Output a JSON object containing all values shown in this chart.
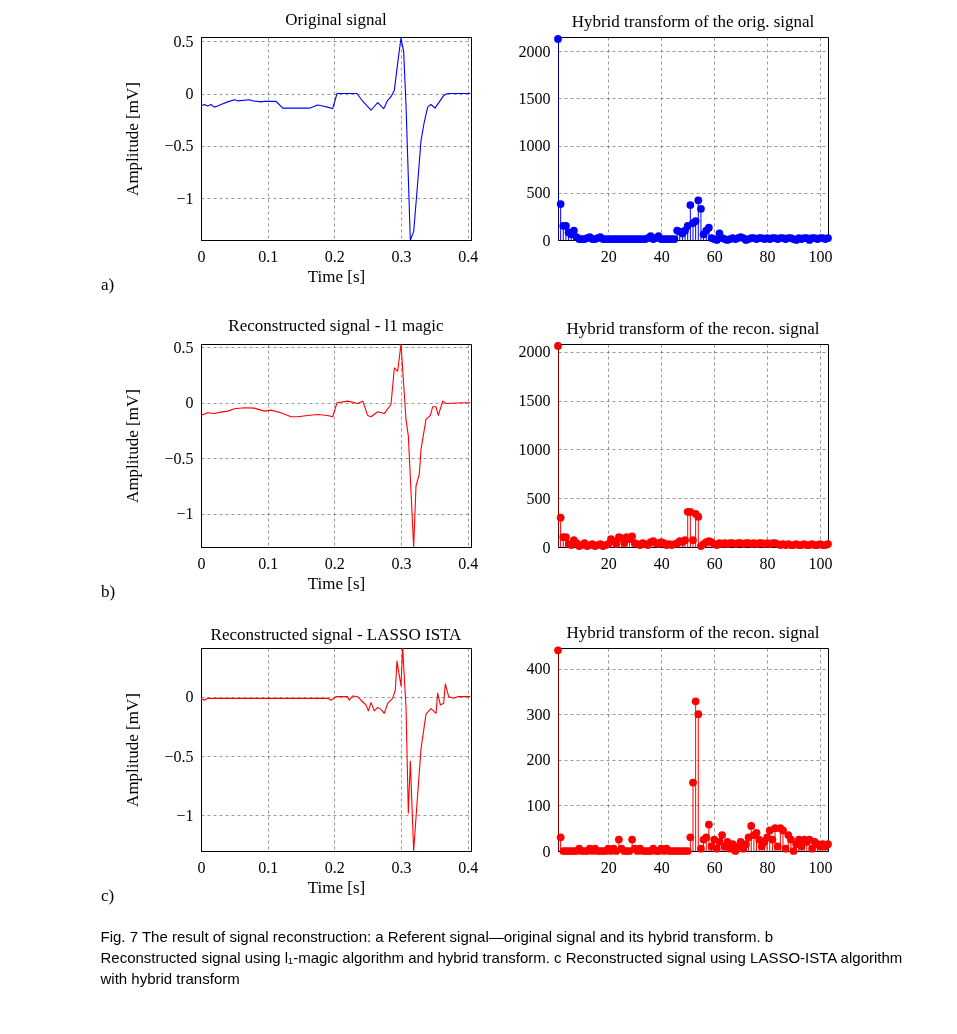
{
  "chart_data": [
    {
      "type": "line",
      "title": "Original signal",
      "xlabel": "Time [s]",
      "ylabel": "Amplitude [mV]",
      "xlim": [
        0,
        0.405
      ],
      "ylim": [
        -1.4,
        0.54
      ],
      "xticks": [
        0,
        0.1,
        0.2,
        0.3,
        0.4
      ],
      "yticks": [
        -1,
        -0.5,
        0,
        0.5
      ],
      "grid": true,
      "annotations": [
        "a)"
      ],
      "series": [
        {
          "color": "#0000ff",
          "x": [
            0,
            0.005,
            0.01,
            0.015,
            0.02,
            0.025,
            0.03,
            0.04,
            0.05,
            0.055,
            0.0725,
            0.0775,
            0.09,
            0.095,
            0.1125,
            0.1225,
            0.1625,
            0.175,
            0.1825,
            0.19,
            0.1975,
            0.204,
            0.234,
            0.2425,
            0.255,
            0.265,
            0.274,
            0.28,
            0.285,
            0.29,
            0.296,
            0.3,
            0.304,
            0.3075,
            0.314,
            0.319,
            0.325,
            0.33,
            0.335,
            0.34,
            0.345,
            0.351,
            0.3575,
            0.364,
            0.37,
            0.404
          ],
          "values": [
            -0.12,
            -0.105,
            -0.12,
            -0.105,
            -0.13,
            -0.12,
            -0.105,
            -0.08,
            -0.06,
            -0.07,
            -0.06,
            -0.07,
            -0.08,
            -0.075,
            -0.074,
            -0.14,
            -0.14,
            -0.11,
            -0.12,
            -0.13,
            -0.145,
            0,
            0,
            -0.074,
            -0.16,
            -0.087,
            -0.145,
            -0.065,
            -0.03,
            0.03,
            0.34,
            0.53,
            0.4,
            -0.11,
            -1.4,
            -1.32,
            -0.855,
            -0.45,
            -0.27,
            -0.13,
            -0.105,
            -0.14,
            -0.08,
            -0.02,
            0,
            0
          ]
        }
      ]
    },
    {
      "type": "lollipop",
      "title": "Hybrid transform of the orig. signal",
      "xlim": [
        1,
        103
      ],
      "ylim": [
        0,
        2150
      ],
      "xticks": [
        20,
        40,
        60,
        80,
        100
      ],
      "yticks": [
        0,
        500,
        1000,
        1500,
        2000
      ],
      "grid": true,
      "marker": "circle",
      "x": [
        1,
        2,
        3,
        4,
        5,
        6,
        7,
        8,
        9,
        10,
        11,
        12,
        13,
        14,
        15,
        16,
        17,
        18,
        19,
        20,
        21,
        22,
        23,
        24,
        25,
        26,
        27,
        28,
        29,
        30,
        31,
        32,
        33,
        34,
        35,
        36,
        37,
        38,
        39,
        40,
        41,
        42,
        43,
        44,
        45,
        46,
        47,
        48,
        49,
        50,
        51,
        52,
        53,
        54,
        55,
        56,
        57,
        58,
        59,
        60,
        61,
        62,
        63,
        64,
        65,
        66,
        67,
        68,
        69,
        70,
        71,
        72,
        73,
        74,
        75,
        76,
        77,
        78,
        79,
        80,
        81,
        82,
        83,
        84,
        85,
        86,
        87,
        88,
        89,
        90,
        91,
        92,
        93,
        94,
        95,
        96,
        97,
        98,
        99,
        100,
        101,
        102,
        103
      ],
      "series": [
        {
          "color": "#0000ff",
          "values": [
            2130,
            380,
            150,
            150,
            80,
            60,
            100,
            30,
            10,
            10,
            10,
            20,
            30,
            10,
            10,
            20,
            30,
            10,
            10,
            10,
            10,
            10,
            10,
            10,
            10,
            10,
            10,
            10,
            10,
            10,
            10,
            10,
            10,
            10,
            20,
            40,
            10,
            20,
            40,
            10,
            10,
            10,
            10,
            10,
            10,
            100,
            90,
            70,
            100,
            150,
            370,
            180,
            200,
            420,
            330,
            60,
            100,
            130,
            20,
            10,
            0,
            70,
            20,
            10,
            0,
            10,
            20,
            10,
            20,
            30,
            20,
            0,
            10,
            20,
            20,
            10,
            20,
            20,
            10,
            20,
            10,
            20,
            20,
            10,
            20,
            20,
            10,
            20,
            20,
            10,
            0,
            20,
            10,
            20,
            20,
            0,
            20,
            20,
            10,
            20,
            20,
            10,
            20
          ]
        }
      ]
    },
    {
      "type": "line",
      "title": "Reconstructed signal - l1 magic",
      "xlabel": "Time [s]",
      "ylabel": "Amplitude [mV]",
      "xlim": [
        0,
        0.405
      ],
      "ylim": [
        -1.3,
        0.53
      ],
      "xticks": [
        0,
        0.1,
        0.2,
        0.3,
        0.4
      ],
      "yticks": [
        -1,
        -0.5,
        0,
        0.5
      ],
      "grid": true,
      "annotations": [
        "b)"
      ],
      "series": [
        {
          "color": "#ff0000",
          "x": [
            0,
            0.01,
            0.02,
            0.03,
            0.04,
            0.05,
            0.065,
            0.08,
            0.095,
            0.105,
            0.12,
            0.135,
            0.145,
            0.16,
            0.175,
            0.19,
            0.1975,
            0.204,
            0.22,
            0.235,
            0.2425,
            0.25,
            0.255,
            0.265,
            0.275,
            0.285,
            0.29,
            0.295,
            0.3,
            0.3075,
            0.311,
            0.319,
            0.3225,
            0.3275,
            0.33,
            0.3375,
            0.344,
            0.3475,
            0.3525,
            0.356,
            0.3625,
            0.3675,
            0.395,
            0.404
          ],
          "values": [
            -0.114,
            -0.09,
            -0.096,
            -0.084,
            -0.075,
            -0.054,
            -0.045,
            -0.048,
            -0.075,
            -0.066,
            -0.09,
            -0.126,
            -0.126,
            -0.114,
            -0.105,
            -0.114,
            -0.126,
            0,
            0.015,
            -0.006,
            0.015,
            -0.114,
            -0.126,
            -0.081,
            -0.096,
            -0.015,
            0.314,
            0.284,
            0.53,
            -0.15,
            -0.3,
            -1.3,
            -0.75,
            -0.64,
            -0.42,
            -0.15,
            -0.114,
            -0.036,
            -0.036,
            -0.114,
            0.015,
            -0.006,
            0,
            0
          ]
        }
      ]
    },
    {
      "type": "lollipop",
      "title": "Hybrid transform of the recon. signal",
      "xlim": [
        1,
        103
      ],
      "ylim": [
        0,
        2080
      ],
      "xticks": [
        20,
        40,
        60,
        80,
        100
      ],
      "yticks": [
        0,
        500,
        1000,
        1500,
        2000
      ],
      "grid": true,
      "marker": "circle",
      "x": [
        1,
        2,
        3,
        4,
        5,
        6,
        7,
        8,
        9,
        10,
        11,
        12,
        13,
        14,
        15,
        16,
        17,
        18,
        19,
        20,
        21,
        22,
        23,
        24,
        25,
        26,
        27,
        28,
        29,
        30,
        31,
        32,
        33,
        34,
        35,
        36,
        37,
        38,
        39,
        40,
        41,
        42,
        43,
        44,
        45,
        46,
        47,
        48,
        49,
        50,
        51,
        52,
        53,
        54,
        55,
        56,
        57,
        58,
        59,
        60,
        61,
        62,
        63,
        64,
        65,
        66,
        67,
        68,
        69,
        70,
        71,
        72,
        73,
        74,
        75,
        76,
        77,
        78,
        79,
        80,
        81,
        82,
        83,
        84,
        85,
        86,
        87,
        88,
        89,
        90,
        91,
        92,
        93,
        94,
        95,
        96,
        97,
        98,
        99,
        100,
        101,
        102,
        103
      ],
      "series": [
        {
          "color": "#ff0000",
          "values": [
            2060,
            300,
            100,
            100,
            30,
            20,
            70,
            40,
            10,
            20,
            40,
            10,
            20,
            30,
            10,
            20,
            30,
            10,
            20,
            30,
            80,
            60,
            30,
            100,
            90,
            40,
            100,
            80,
            110,
            40,
            30,
            20,
            40,
            30,
            20,
            50,
            60,
            40,
            30,
            50,
            40,
            20,
            30,
            20,
            30,
            40,
            60,
            50,
            70,
            360,
            360,
            70,
            340,
            310,
            10,
            30,
            50,
            60,
            50,
            30,
            20,
            40,
            30,
            40,
            30,
            40,
            40,
            30,
            40,
            40,
            30,
            40,
            40,
            30,
            40,
            30,
            40,
            40,
            30,
            40,
            30,
            40,
            40,
            30,
            20,
            30,
            20,
            30,
            20,
            20,
            30,
            20,
            20,
            30,
            20,
            20,
            30,
            20,
            20,
            30,
            20,
            20,
            30
          ]
        }
      ]
    },
    {
      "type": "line",
      "title": "Reconstructed signal - LASSO ISTA",
      "xlabel": "Time [s]",
      "ylabel": "Amplitude [mV]",
      "xlim": [
        0,
        0.405
      ],
      "ylim": [
        -1.3,
        0.41
      ],
      "xticks": [
        0,
        0.1,
        0.2,
        0.3,
        0.4
      ],
      "yticks": [
        -1,
        -0.5,
        0
      ],
      "grid": true,
      "annotations": [
        "c)",
        "Fig. 7 The result of signal reconstruction: a Referent signal—original signal and its hybrid transform. b Reconstructed signal using l₁-magic algorithm and hybrid transform. c Reconstructed signal using LASSO-ISTA algorithm with hybrid transform"
      ],
      "series": [
        {
          "color": "#ff0000",
          "x": [
            0,
            0.005,
            0.01,
            0.19,
            0.195,
            0.2025,
            0.22,
            0.2225,
            0.2275,
            0.235,
            0.24,
            0.2475,
            0.251,
            0.255,
            0.26,
            0.265,
            0.27,
            0.275,
            0.28,
            0.2875,
            0.2915,
            0.294,
            0.3,
            0.3025,
            0.3075,
            0.311,
            0.314,
            0.319,
            0.324,
            0.33,
            0.3375,
            0.345,
            0.3525,
            0.355,
            0.359,
            0.364,
            0.3665,
            0.3715,
            0.379,
            0.385,
            0.404
          ],
          "values": [
            -0.014,
            -0.03,
            -0.014,
            -0.014,
            -0.03,
            0,
            0,
            -0.03,
            0.006,
            0,
            -0.03,
            -0.07,
            -0.12,
            -0.05,
            -0.12,
            -0.09,
            -0.107,
            -0.14,
            -0.056,
            -0.014,
            0.056,
            0.3,
            0.09,
            0.41,
            -0.085,
            -0.98,
            -0.545,
            -1.3,
            -0.9,
            -0.44,
            -0.147,
            -0.1,
            -0.14,
            0.03,
            -0.07,
            -0.056,
            0.107,
            0,
            -0.014,
            0,
            0
          ]
        }
      ]
    },
    {
      "type": "lollipop",
      "title": "Hybrid transform of the recon. signal",
      "xlim": [
        1,
        103
      ],
      "ylim": [
        0,
        445
      ],
      "xticks": [
        20,
        40,
        60,
        80,
        100
      ],
      "yticks": [
        0,
        100,
        200,
        300,
        400
      ],
      "grid": true,
      "marker": "circle",
      "x": [
        1,
        2,
        3,
        4,
        5,
        6,
        7,
        8,
        9,
        10,
        11,
        12,
        13,
        14,
        15,
        16,
        17,
        18,
        19,
        20,
        21,
        22,
        23,
        24,
        25,
        26,
        27,
        28,
        29,
        30,
        31,
        32,
        33,
        34,
        35,
        36,
        37,
        38,
        39,
        40,
        41,
        42,
        43,
        44,
        45,
        46,
        47,
        48,
        49,
        50,
        51,
        52,
        53,
        54,
        55,
        56,
        57,
        58,
        59,
        60,
        61,
        62,
        63,
        64,
        65,
        66,
        67,
        68,
        69,
        70,
        71,
        72,
        73,
        74,
        75,
        76,
        77,
        78,
        79,
        80,
        81,
        82,
        83,
        84,
        85,
        86,
        87,
        88,
        89,
        90,
        91,
        92,
        93,
        94,
        95,
        96,
        97,
        98,
        99,
        100,
        101,
        102,
        103
      ],
      "series": [
        {
          "color": "#ff0000",
          "values": [
            440,
            30,
            0,
            0,
            0,
            0,
            0,
            0,
            5,
            0,
            0,
            0,
            5,
            0,
            5,
            0,
            0,
            0,
            0,
            5,
            0,
            5,
            0,
            25,
            5,
            0,
            0,
            0,
            25,
            5,
            0,
            5,
            0,
            0,
            0,
            0,
            5,
            0,
            0,
            5,
            0,
            5,
            0,
            0,
            0,
            0,
            0,
            0,
            0,
            0,
            30,
            150,
            328,
            300,
            5,
            25,
            30,
            58,
            10,
            25,
            5,
            20,
            35,
            10,
            20,
            5,
            15,
            0,
            10,
            20,
            5,
            15,
            30,
            55,
            35,
            40,
            25,
            10,
            20,
            30,
            45,
            25,
            50,
            10,
            50,
            45,
            5,
            35,
            25,
            0,
            15,
            25,
            10,
            25,
            20,
            25,
            5,
            20,
            15,
            10,
            15,
            10,
            15
          ]
        }
      ]
    }
  ]
}
